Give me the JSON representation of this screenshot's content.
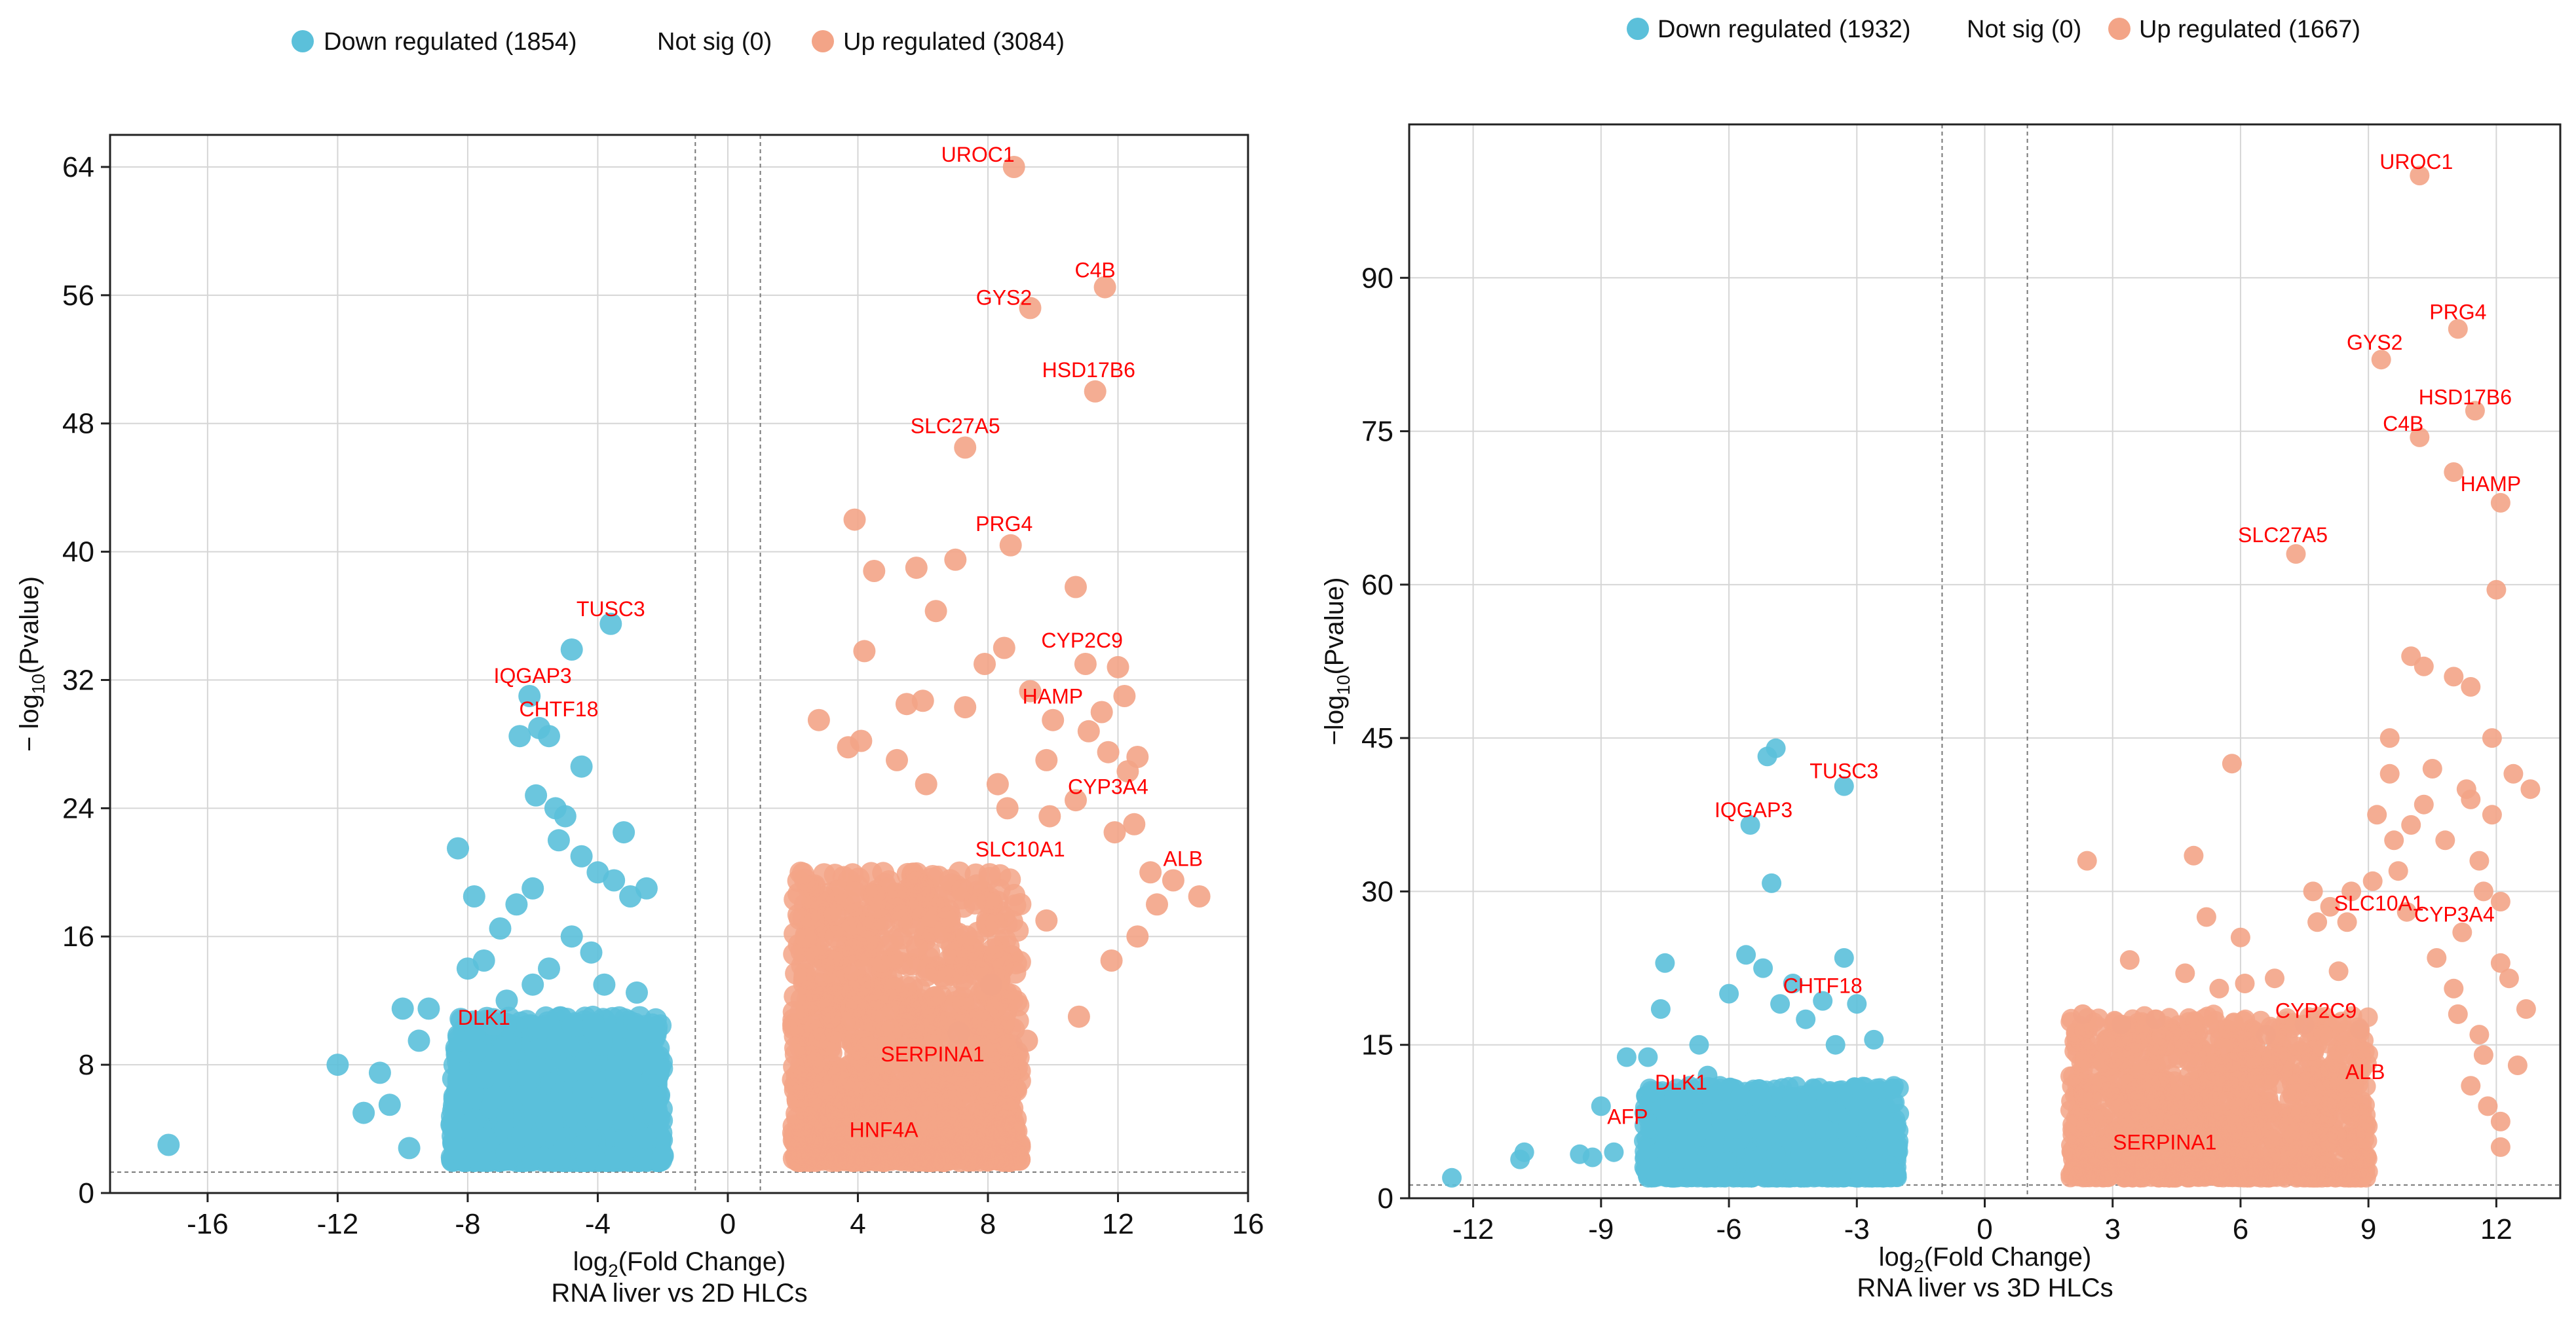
{
  "chart_data": [
    {
      "type": "scatter",
      "name": "RNA liver vs 2D HLCs",
      "xlabel": "log₂(Fold Change)",
      "ylabel": "−log₁₀(Pvalue)",
      "subtitle": "RNA liver vs 2D HLCs",
      "xlim": [
        -19,
        16
      ],
      "ylim": [
        0,
        66
      ],
      "xticks": [
        -16,
        -12,
        -8,
        -4,
        0,
        4,
        8,
        12,
        16
      ],
      "yticks": [
        0,
        8,
        16,
        24,
        32,
        40,
        48,
        56,
        64
      ],
      "grid": true,
      "legend_position": "top",
      "thresholds": {
        "fc_lines": [
          -1,
          1
        ],
        "p_line": 1.3
      },
      "legend": [
        {
          "label": "Down regulated (1854)",
          "color": "#5bc0da"
        },
        {
          "label": "Not sig (0)",
          "color": null
        },
        {
          "label": "Up regulated (3084)",
          "color": "#f3a487"
        }
      ],
      "series": [
        {
          "name": "Down regulated",
          "count": 1854,
          "color": "#5bc0da",
          "cloud": {
            "x": [
              -8.5,
              -2
            ],
            "y": [
              2,
              11
            ]
          },
          "points": [
            [
              -17.2,
              3
            ],
            [
              -12,
              8
            ],
            [
              -11.2,
              5
            ],
            [
              -10.7,
              7.5
            ],
            [
              -10.4,
              5.5
            ],
            [
              -9.8,
              2.8
            ],
            [
              -10,
              11.5
            ],
            [
              -9.5,
              9.5
            ],
            [
              -9.2,
              11.5
            ],
            [
              -8.3,
              21.5
            ],
            [
              -7.8,
              18.5
            ],
            [
              -8,
              14
            ],
            [
              -7.5,
              14.5
            ],
            [
              -7,
              16.5
            ],
            [
              -6.5,
              18
            ],
            [
              -6,
              19
            ],
            [
              -6.4,
              28.5
            ],
            [
              -5.8,
              29
            ],
            [
              -5.5,
              28.5
            ],
            [
              -6.1,
              31
            ],
            [
              -5.9,
              24.8
            ],
            [
              -5.3,
              24
            ],
            [
              -5,
              23.5
            ],
            [
              -5.2,
              22
            ],
            [
              -4.5,
              26.6
            ],
            [
              -4.8,
              33.9
            ],
            [
              -3.6,
              35.5
            ],
            [
              -4.5,
              21
            ],
            [
              -4,
              20
            ],
            [
              -3.5,
              19.5
            ],
            [
              -3,
              18.5
            ],
            [
              -2.5,
              19
            ],
            [
              -3.2,
              22.5
            ],
            [
              -4.8,
              16
            ],
            [
              -5.5,
              14
            ],
            [
              -4.2,
              15
            ],
            [
              -3.8,
              13
            ],
            [
              -2.8,
              12.5
            ],
            [
              -6.8,
              12
            ],
            [
              -7.2,
              10.5
            ],
            [
              -6,
              13
            ]
          ]
        },
        {
          "name": "Up regulated",
          "count": 3084,
          "color": "#f3a487",
          "cloud": {
            "x": [
              2,
              9
            ],
            "y": [
              2,
              20
            ]
          },
          "points": [
            [
              8.8,
              64
            ],
            [
              11.6,
              56.5
            ],
            [
              9.3,
              55.2
            ],
            [
              11.3,
              50
            ],
            [
              7.3,
              46.5
            ],
            [
              3.9,
              42
            ],
            [
              5.8,
              39
            ],
            [
              7,
              39.5
            ],
            [
              4.5,
              38.8
            ],
            [
              8.7,
              40.4
            ],
            [
              10.7,
              37.8
            ],
            [
              4.2,
              33.8
            ],
            [
              6.4,
              36.3
            ],
            [
              7.9,
              33
            ],
            [
              8.5,
              34
            ],
            [
              11,
              33
            ],
            [
              12,
              32.8
            ],
            [
              12.2,
              31
            ],
            [
              11.5,
              30
            ],
            [
              7.3,
              30.3
            ],
            [
              2.8,
              29.5
            ],
            [
              5.5,
              30.5
            ],
            [
              9.3,
              31.3
            ],
            [
              10,
              29.5
            ],
            [
              11.1,
              28.8
            ],
            [
              11.7,
              27.5
            ],
            [
              12.6,
              27.2
            ],
            [
              9.8,
              27
            ],
            [
              12.3,
              26.3
            ],
            [
              8.3,
              25.5
            ],
            [
              6.1,
              25.5
            ],
            [
              8.6,
              24
            ],
            [
              9.9,
              23.5
            ],
            [
              10.7,
              24.5
            ],
            [
              12.5,
              23
            ],
            [
              11.9,
              22.5
            ],
            [
              13,
              20
            ],
            [
              14.5,
              18.5
            ],
            [
              13.7,
              19.5
            ],
            [
              13.2,
              18
            ],
            [
              12.6,
              16
            ],
            [
              11.8,
              14.5
            ],
            [
              9.8,
              17
            ],
            [
              8.1,
              13
            ],
            [
              7.1,
              10
            ],
            [
              9.2,
              9.5
            ],
            [
              10.8,
              11
            ],
            [
              4.1,
              28.2
            ],
            [
              3.7,
              27.8
            ],
            [
              5.2,
              27
            ],
            [
              6,
              30.7
            ]
          ]
        }
      ],
      "annotations": [
        {
          "label": "UROC1",
          "x": 8.8,
          "y": 64
        },
        {
          "label": "C4B",
          "x": 11.6,
          "y": 56.5
        },
        {
          "label": "GYS2",
          "x": 9.3,
          "y": 55.2
        },
        {
          "label": "HSD17B6",
          "x": 11.3,
          "y": 50
        },
        {
          "label": "SLC27A5",
          "x": 7.3,
          "y": 46.5
        },
        {
          "label": "PRG4",
          "x": 8.7,
          "y": 40.4
        },
        {
          "label": "CYP2C9",
          "x": 11.6,
          "y": 33.2
        },
        {
          "label": "HAMP",
          "x": 11,
          "y": 29.5
        },
        {
          "label": "CYP3A4",
          "x": 12.2,
          "y": 24
        },
        {
          "label": "ALB",
          "x": 14,
          "y": 19.5
        },
        {
          "label": "SLC10A1",
          "x": 10,
          "y": 21
        },
        {
          "label": "SERPINA1",
          "x": 6.5,
          "y": 8.2
        },
        {
          "label": "HNF4A",
          "x": 5,
          "y": 3.5
        },
        {
          "label": "TUSC3",
          "x": -3.6,
          "y": 35.5
        },
        {
          "label": "IQGAP3",
          "x": -5.9,
          "y": 31
        },
        {
          "label": "CHTF18",
          "x": -5.3,
          "y": 29
        },
        {
          "label": "DLK1",
          "x": -7.5,
          "y": 10
        }
      ]
    },
    {
      "type": "scatter",
      "name": "RNA liver vs 3D HLCs",
      "xlabel": "log₂(Fold Change)",
      "ylabel": "−log₁₀(Pvalue)",
      "subtitle": "RNA liver vs 3D HLCs",
      "xlim": [
        -13.5,
        13.5
      ],
      "ylim": [
        0,
        105
      ],
      "xticks": [
        -12,
        -9,
        -6,
        -3,
        0,
        3,
        6,
        9,
        12
      ],
      "yticks": [
        0,
        15,
        30,
        45,
        60,
        75,
        90
      ],
      "grid": true,
      "legend_position": "top",
      "thresholds": {
        "fc_lines": [
          -1,
          1
        ],
        "p_line": 1.3
      },
      "legend": [
        {
          "label": "Down regulated (1932)",
          "color": "#5bc0da"
        },
        {
          "label": "Not sig (0)",
          "color": null
        },
        {
          "label": "Up regulated (1667)",
          "color": "#f3a487"
        }
      ],
      "series": [
        {
          "name": "Down regulated",
          "count": 1932,
          "color": "#5bc0da",
          "cloud": {
            "x": [
              -8,
              -2
            ],
            "y": [
              2,
              11
            ]
          },
          "points": [
            [
              -12.5,
              2
            ],
            [
              -10.9,
              3.8
            ],
            [
              -10.8,
              4.5
            ],
            [
              -9.5,
              4.3
            ],
            [
              -9.2,
              4
            ],
            [
              -8.7,
              4.5
            ],
            [
              -9,
              9
            ],
            [
              -8.4,
              13.8
            ],
            [
              -7.9,
              13.8
            ],
            [
              -7.6,
              18.5
            ],
            [
              -7.5,
              23
            ],
            [
              -6.7,
              15
            ],
            [
              -6.5,
              12
            ],
            [
              -6,
              20
            ],
            [
              -5.6,
              23.8
            ],
            [
              -5.5,
              36.5
            ],
            [
              -5,
              30.8
            ],
            [
              -5.1,
              43.2
            ],
            [
              -4.9,
              44
            ],
            [
              -3.3,
              40.3
            ],
            [
              -5.2,
              22.5
            ],
            [
              -4.8,
              19
            ],
            [
              -4.5,
              21
            ],
            [
              -4.2,
              17.5
            ],
            [
              -3.8,
              19.3
            ],
            [
              -3.3,
              23.5
            ],
            [
              -3,
              19
            ],
            [
              -2.6,
              15.5
            ],
            [
              -3.5,
              15
            ]
          ]
        },
        {
          "name": "Up regulated",
          "count": 1667,
          "color": "#f3a487",
          "cloud": {
            "x": [
              2,
              9
            ],
            "y": [
              2,
              18
            ]
          },
          "points": [
            [
              10.2,
              100
            ],
            [
              11.1,
              85
            ],
            [
              9.3,
              82
            ],
            [
              11.5,
              77
            ],
            [
              10.2,
              74.4
            ],
            [
              11,
              71
            ],
            [
              12.1,
              68
            ],
            [
              12,
              59.5
            ],
            [
              7.3,
              63
            ],
            [
              2.4,
              33
            ],
            [
              5.8,
              42.5
            ],
            [
              4.9,
              33.5
            ],
            [
              10,
              53
            ],
            [
              10.3,
              52
            ],
            [
              11,
              51
            ],
            [
              11.4,
              50
            ],
            [
              11.9,
              45
            ],
            [
              9.5,
              45
            ],
            [
              9.5,
              41.5
            ],
            [
              10.5,
              42
            ],
            [
              11.3,
              40
            ],
            [
              12.4,
              41.5
            ],
            [
              12.8,
              40
            ],
            [
              10.3,
              38.5
            ],
            [
              11.4,
              39
            ],
            [
              11.9,
              37.5
            ],
            [
              9.2,
              37.5
            ],
            [
              9.6,
              35
            ],
            [
              10,
              36.5
            ],
            [
              9.7,
              32
            ],
            [
              10.8,
              35
            ],
            [
              11.6,
              33
            ],
            [
              9.1,
              31
            ],
            [
              8.6,
              30
            ],
            [
              7.7,
              30
            ],
            [
              8.1,
              28.5
            ],
            [
              7.8,
              27
            ],
            [
              8.5,
              27
            ],
            [
              9.9,
              28
            ],
            [
              11.7,
              30
            ],
            [
              12.1,
              29
            ],
            [
              11.2,
              26
            ],
            [
              12.1,
              23
            ],
            [
              12.3,
              21.5
            ],
            [
              12.7,
              18.5
            ],
            [
              11.6,
              16
            ],
            [
              12.5,
              13
            ],
            [
              11.4,
              11
            ],
            [
              11.8,
              9
            ],
            [
              12.1,
              7.5
            ],
            [
              12.1,
              5
            ],
            [
              11.7,
              14
            ],
            [
              11.1,
              18
            ],
            [
              11,
              20.5
            ],
            [
              10.6,
              23.5
            ],
            [
              8.3,
              22.2
            ],
            [
              6.8,
              21.5
            ],
            [
              6.1,
              21
            ],
            [
              5.5,
              20.5
            ],
            [
              4.7,
              22
            ],
            [
              3.4,
              23.3
            ],
            [
              6,
              25.5
            ],
            [
              5.2,
              27.5
            ],
            [
              3.2,
              17
            ],
            [
              2.3,
              18
            ],
            [
              4,
              17.5
            ],
            [
              6.6,
              16
            ],
            [
              7.5,
              17
            ],
            [
              8.8,
              16.5
            ]
          ]
        }
      ],
      "annotations": [
        {
          "label": "UROC1",
          "x": 10.2,
          "y": 100
        },
        {
          "label": "PRG4",
          "x": 11.1,
          "y": 85
        },
        {
          "label": "GYS2",
          "x": 9.3,
          "y": 82
        },
        {
          "label": "HSD17B6",
          "x": 11.5,
          "y": 77
        },
        {
          "label": "C4B",
          "x": 10.2,
          "y": 74.4
        },
        {
          "label": "HAMP",
          "x": 12.1,
          "y": 68
        },
        {
          "label": "SLC27A5",
          "x": 7.3,
          "y": 63
        },
        {
          "label": "SLC10A1",
          "x": 9.4,
          "y": 27.5
        },
        {
          "label": "CYP3A4",
          "x": 11.2,
          "y": 26.4
        },
        {
          "label": "CYP2C9",
          "x": 8,
          "y": 17
        },
        {
          "label": "ALB",
          "x": 9,
          "y": 11
        },
        {
          "label": "SERPINA1",
          "x": 4.3,
          "y": 3.8
        },
        {
          "label": "TUSC3",
          "x": -3.3,
          "y": 40.3
        },
        {
          "label": "IQGAP3",
          "x": -5.5,
          "y": 36.5
        },
        {
          "label": "CHTF18",
          "x": -3.8,
          "y": 19.3
        },
        {
          "label": "DLK1",
          "x": -7,
          "y": 10
        },
        {
          "label": "AFP",
          "x": -8.3,
          "y": 6.5
        }
      ]
    }
  ]
}
